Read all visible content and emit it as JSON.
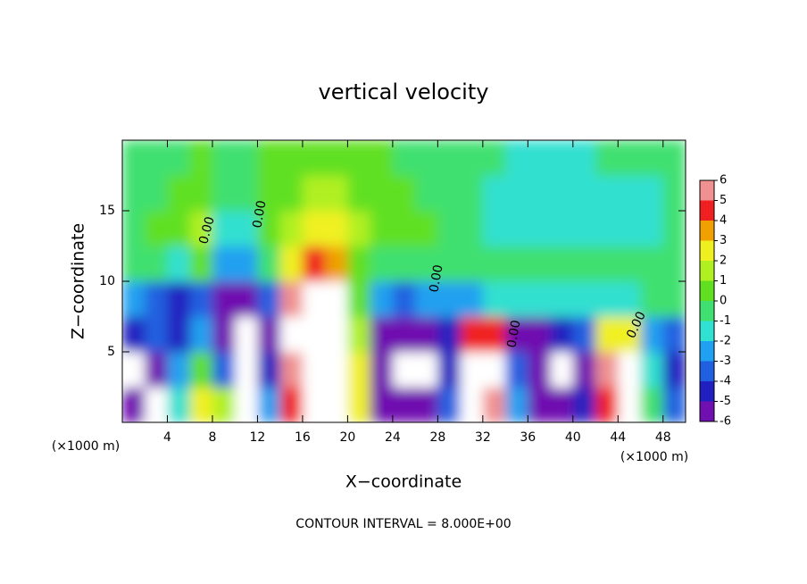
{
  "chart_data": {
    "type": "heatmap",
    "title": "vertical velocity",
    "x_label": "X−coordinate",
    "y_label": "Z−coordinate",
    "x_unit_label": "(×1000 m)",
    "y_unit_label": "(×1000 m)",
    "footer": "CONTOUR INTERVAL = 8.000E+00",
    "contour_label": "0.00",
    "xlim": [
      0,
      50
    ],
    "ylim": [
      0,
      20
    ],
    "xticks": [
      4,
      8,
      12,
      16,
      20,
      24,
      28,
      32,
      36,
      40,
      44,
      48
    ],
    "yticks": [
      5,
      10,
      15
    ],
    "x": [
      1,
      3,
      5,
      7,
      9,
      11,
      13,
      15,
      17,
      19,
      21,
      23,
      25,
      27,
      29,
      31,
      33,
      35,
      37,
      39,
      41,
      43,
      45,
      47,
      49
    ],
    "y": [
      1.25,
      3.75,
      6.25,
      8.75,
      11.25,
      13.75,
      16.25,
      18.75
    ],
    "z": [
      [
        -5,
        -7,
        -1,
        3,
        2,
        -7,
        -2,
        5,
        8,
        7,
        3,
        -5,
        -6,
        -6,
        -3,
        7,
        6,
        -2,
        -5,
        -6,
        -4,
        5,
        7,
        0,
        -3
      ],
      [
        -7,
        -6,
        -2,
        1,
        -3,
        -8,
        -4,
        6,
        9,
        8,
        3,
        -6,
        -7,
        -7,
        -4,
        8,
        8,
        -3,
        -6,
        -7,
        -5,
        6,
        7,
        -1,
        -4
      ],
      [
        -4,
        -3,
        -4,
        -2,
        -5,
        -7,
        -5,
        7,
        10,
        9,
        2,
        -5,
        -5,
        -5,
        -4,
        5,
        5,
        -5,
        -5,
        -4,
        -3,
        3,
        3,
        -2,
        -3
      ],
      [
        -2,
        -3,
        -4,
        -3,
        -5,
        -5,
        -3,
        6,
        8,
        7,
        1,
        -2,
        -3,
        -2,
        -2,
        -2,
        -1,
        -1,
        -1,
        -1,
        -1,
        -1,
        -1,
        0,
        0
      ],
      [
        0,
        0,
        -1,
        1,
        -2,
        -2,
        0,
        3,
        5,
        4,
        1,
        0,
        0,
        0,
        0,
        0,
        0,
        0,
        0,
        0,
        0,
        0,
        0,
        0,
        0
      ],
      [
        0,
        1,
        1,
        2,
        -1,
        -1,
        1,
        2,
        3,
        3,
        2,
        1,
        1,
        1,
        0,
        0,
        -1,
        -1,
        -1,
        -1,
        -1,
        -1,
        -1,
        -1,
        0
      ],
      [
        0,
        0,
        1,
        1,
        0,
        0,
        1,
        1,
        2,
        2,
        1,
        1,
        1,
        0,
        0,
        0,
        -1,
        -1,
        -1,
        -1,
        -1,
        -1,
        -1,
        -1,
        0
      ],
      [
        0,
        0,
        0,
        1,
        0,
        0,
        1,
        1,
        1,
        1,
        1,
        1,
        0,
        0,
        0,
        0,
        0,
        -1,
        -1,
        -1,
        -1,
        0,
        0,
        0,
        0
      ]
    ],
    "colorbar": {
      "ticks": [
        -6,
        -5,
        -4,
        -3,
        -2,
        -1,
        0,
        1,
        2,
        3,
        4,
        5,
        6
      ],
      "colors": [
        "#7010b0",
        "#2020c0",
        "#2060e0",
        "#20a0f0",
        "#30e0d0",
        "#40e070",
        "#60e020",
        "#b0f020",
        "#f0f020",
        "#f0a000",
        "#f02020",
        "#f09090"
      ]
    }
  }
}
